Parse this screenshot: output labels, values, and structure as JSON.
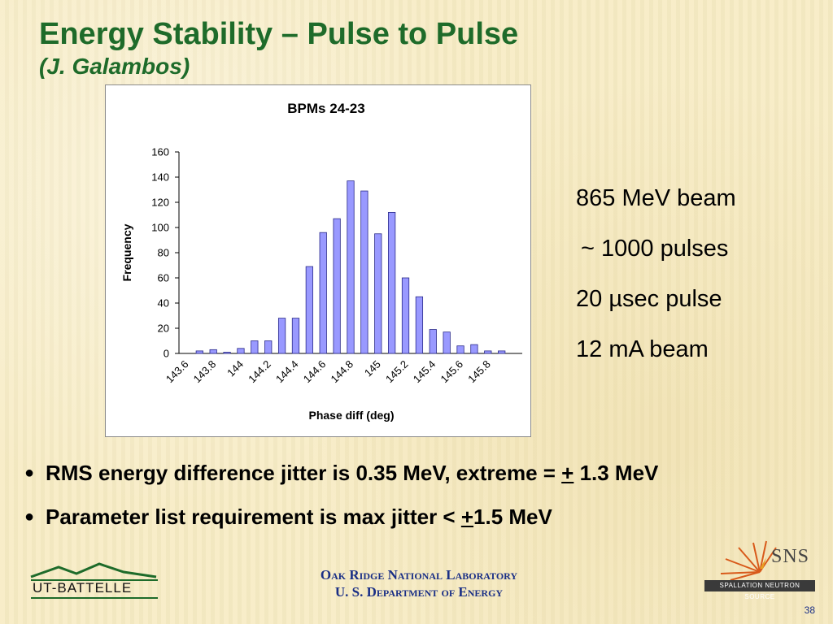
{
  "slide": {
    "title": "Energy Stability – Pulse to Pulse",
    "subtitle": "(J. Galambos)",
    "page_number": "38"
  },
  "params": [
    "865 MeV beam",
    "~ 1000 pulses",
    "20 µsec pulse",
    "12 mA beam"
  ],
  "bullets": [
    {
      "before": "RMS energy difference jitter is 0.35 MeV, extreme = ",
      "underlined": "+",
      "after": " 1.3 MeV"
    },
    {
      "before": "Parameter list requirement is max jitter < ",
      "underlined": "+",
      "after": "1.5 MeV"
    }
  ],
  "footer": {
    "org_line1": "Oak Ridge National Laboratory",
    "org_line2": "U. S. Department of Energy",
    "ut_logo_text": "UT-BATTELLE",
    "sns_logo_text": "SNS",
    "sns_logo_subtext": "SPALLATION NEUTRON SOURCE"
  },
  "colors": {
    "title": "#1e6b2a",
    "bar_fill": "#9999ff",
    "bar_stroke": "#2a2a8a",
    "footer_text": "#1a2f86"
  },
  "chart_data": {
    "type": "bar",
    "title": "BPMs 24-23",
    "xlabel": "Phase diff (deg)",
    "ylabel": "Frequency",
    "ylim": [
      0,
      160
    ],
    "yticks": [
      0,
      20,
      40,
      60,
      80,
      100,
      120,
      140,
      160
    ],
    "grid": false,
    "legend": "none",
    "categories": [
      "143.6",
      "143.7",
      "143.8",
      "143.9",
      "144",
      "144.1",
      "144.2",
      "144.3",
      "144.4",
      "144.5",
      "144.6",
      "144.7",
      "144.8",
      "144.9",
      "145",
      "145.1",
      "145.2",
      "145.3",
      "145.4",
      "145.5",
      "145.6",
      "145.7",
      "145.8",
      "145.9",
      "146"
    ],
    "tick_labels": [
      "143.6",
      "143.8",
      "144",
      "144.2",
      "144.4",
      "144.6",
      "144.8",
      "145",
      "145.2",
      "145.4",
      "145.6",
      "145.8"
    ],
    "values": [
      0,
      2,
      3,
      1,
      4,
      10,
      10,
      28,
      28,
      69,
      96,
      107,
      137,
      129,
      95,
      112,
      60,
      45,
      19,
      17,
      6,
      7,
      2,
      2,
      0
    ]
  }
}
